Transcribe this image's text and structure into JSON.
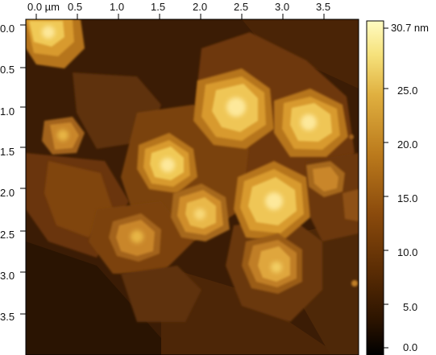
{
  "figure": {
    "x_axis": {
      "ticks": [
        "0.0 µm",
        "0.5",
        "1.0",
        "1.5",
        "2.0",
        "2.5",
        "3.0",
        "3.5"
      ],
      "tick_values": [
        0.0,
        0.5,
        1.0,
        1.5,
        2.0,
        2.5,
        3.0,
        3.5
      ],
      "range": [
        0,
        4.0
      ]
    },
    "y_axis": {
      "ticks": [
        "0.0",
        "0.5",
        "1.0",
        "1.5",
        "2.0",
        "2.5",
        "3.0",
        "3.5"
      ],
      "tick_values": [
        0.0,
        0.5,
        1.0,
        1.5,
        2.0,
        2.5,
        3.0,
        3.5
      ],
      "range": [
        0,
        4.0
      ]
    },
    "colorbar": {
      "ticks": [
        "30.7 nm",
        "25.0",
        "20.0",
        "15.0",
        "10.0",
        "5.0",
        "0.0"
      ],
      "tick_values": [
        30.7,
        25.0,
        20.0,
        15.0,
        10.0,
        5.0,
        0.0
      ],
      "range": [
        0.0,
        30.7
      ],
      "colors": [
        "#000000",
        "#2a1300",
        "#5a2c04",
        "#8a4a0c",
        "#bb7a1c",
        "#e0b040",
        "#f6e27c",
        "#fffbc2"
      ]
    }
  }
}
